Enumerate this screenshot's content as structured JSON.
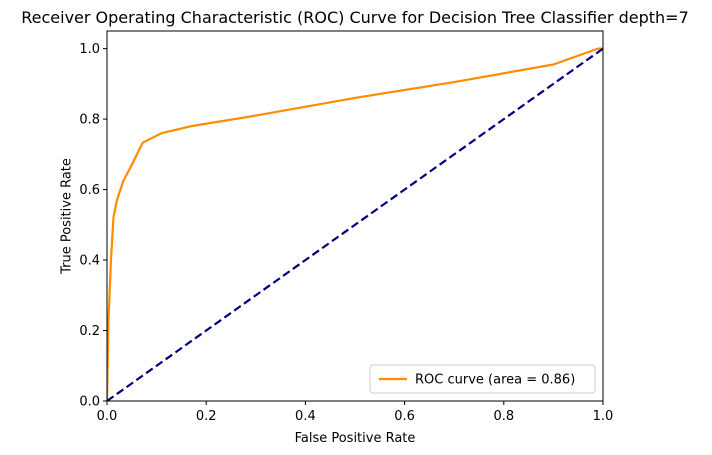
{
  "chart_data": {
    "type": "line",
    "title": "Receiver Operating Characteristic (ROC) Curve for Decision Tree Classifier depth=7",
    "xlabel": "False Positive Rate",
    "ylabel": "True Positive Rate",
    "xlim": [
      0.0,
      1.0
    ],
    "ylim": [
      0.0,
      1.05
    ],
    "grid": false,
    "legend_position": "lower-right",
    "x_ticks": [
      "0.0",
      "0.2",
      "0.4",
      "0.6",
      "0.8",
      "1.0"
    ],
    "y_ticks": [
      "0.0",
      "0.2",
      "0.4",
      "0.6",
      "0.8",
      "1.0"
    ],
    "series": [
      {
        "name": "ROC curve (area = 0.86)",
        "color": "#ff8c00",
        "style": "solid",
        "x": [
          0.0,
          0.003,
          0.008,
          0.013,
          0.02,
          0.033,
          0.05,
          0.072,
          0.11,
          0.17,
          0.3,
          0.5,
          0.7,
          0.9,
          0.99,
          1.0
        ],
        "y": [
          0.0,
          0.23,
          0.4,
          0.52,
          0.57,
          0.625,
          0.67,
          0.733,
          0.76,
          0.78,
          0.81,
          0.86,
          0.905,
          0.955,
          1.0,
          1.0
        ]
      },
      {
        "name": "",
        "color": "#000080",
        "style": "dashed",
        "x": [
          0.0,
          1.0
        ],
        "y": [
          0.0,
          1.0
        ]
      }
    ]
  }
}
